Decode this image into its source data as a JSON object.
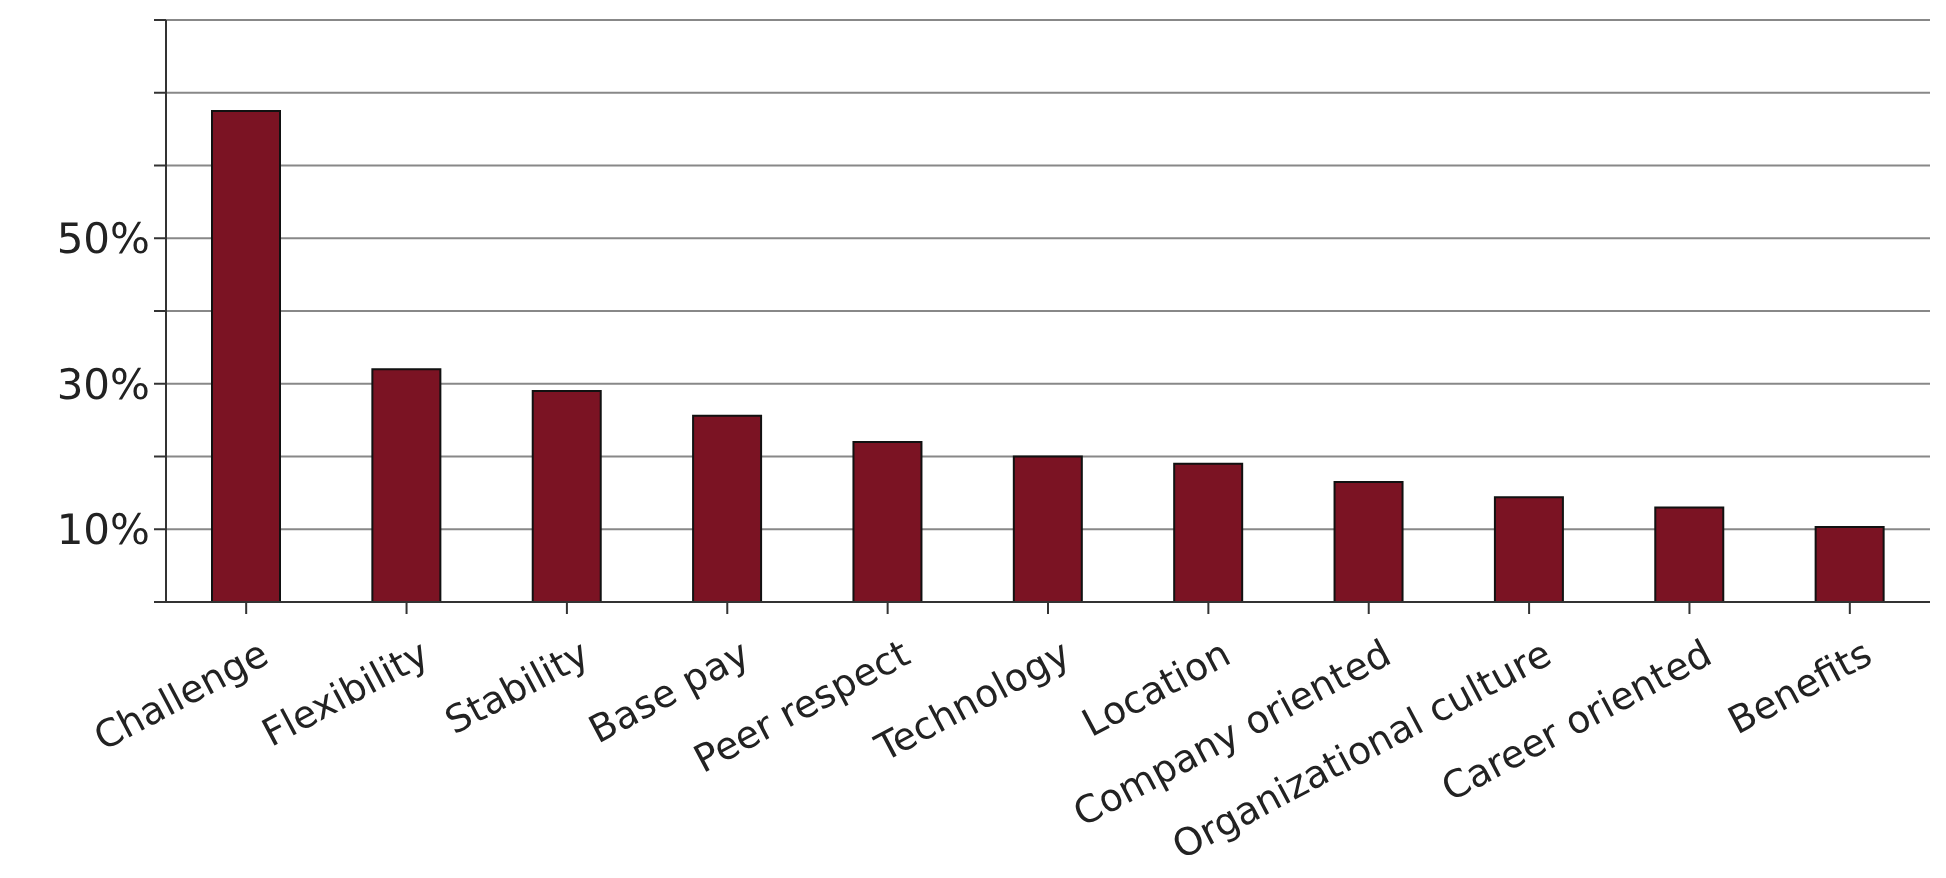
{
  "chart_data": {
    "type": "bar",
    "categories": [
      "Challenge",
      "Flexibility",
      "Stability",
      "Base pay",
      "Peer respect",
      "Technology",
      "Location",
      "Company oriented",
      "Organizational culture",
      "Career oriented",
      "Benefits"
    ],
    "values": [
      67.5,
      32,
      29,
      25.6,
      22,
      20,
      19,
      16.5,
      14.4,
      13,
      10.3
    ],
    "color": "#7b1323",
    "ylim": [
      0,
      80
    ],
    "yticks": [
      {
        "value": 0,
        "label": null
      },
      {
        "value": 10,
        "label": "10%"
      },
      {
        "value": 20,
        "label": null
      },
      {
        "value": 30,
        "label": "30%"
      },
      {
        "value": 40,
        "label": null
      },
      {
        "value": 50,
        "label": "50%"
      },
      {
        "value": 60,
        "label": null
      },
      {
        "value": 70,
        "label": null
      },
      {
        "value": 80,
        "label": null
      }
    ],
    "grid": "y"
  }
}
